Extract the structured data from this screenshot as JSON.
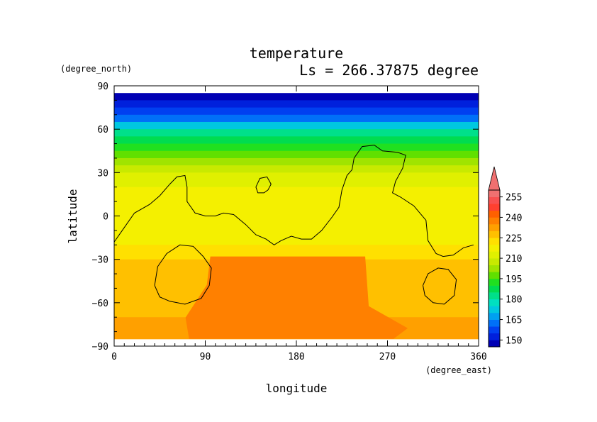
{
  "chart_data": {
    "type": "heatmap",
    "title": "temperature",
    "subtitle": "Ls = 266.37875 degree",
    "xlabel": "longitude",
    "ylabel": "latitude",
    "x_units": "(degree_east)",
    "y_units": "(degree_north)",
    "xlim": [
      0,
      360
    ],
    "ylim": [
      -90,
      90
    ],
    "x_ticks": [
      "0",
      "90",
      "180",
      "270",
      "360"
    ],
    "y_ticks": [
      "90",
      "60",
      "30",
      "0",
      "−30",
      "−60",
      "−90"
    ],
    "grid": false,
    "lat_bands": [
      {
        "lat_range": [
          80,
          85
        ],
        "value": 145
      },
      {
        "lat_range": [
          75,
          80
        ],
        "value": 150
      },
      {
        "lat_range": [
          70,
          75
        ],
        "value": 157
      },
      {
        "lat_range": [
          65,
          70
        ],
        "value": 164
      },
      {
        "lat_range": [
          60,
          65
        ],
        "value": 172
      },
      {
        "lat_range": [
          55,
          60
        ],
        "value": 180
      },
      {
        "lat_range": [
          50,
          55
        ],
        "value": 186
      },
      {
        "lat_range": [
          45,
          50
        ],
        "value": 192
      },
      {
        "lat_range": [
          40,
          45
        ],
        "value": 198
      },
      {
        "lat_range": [
          35,
          40
        ],
        "value": 203
      },
      {
        "lat_range": [
          30,
          35
        ],
        "value": 207
      },
      {
        "lat_range": [
          20,
          30
        ],
        "value": 211
      },
      {
        "lat_range": [
          0,
          20
        ],
        "value": 216
      },
      {
        "lat_range": [
          -20,
          0
        ],
        "value": 219
      },
      {
        "lat_range": [
          -30,
          -20
        ],
        "value": 224
      },
      {
        "lat_range": [
          -70,
          -30
        ],
        "value": 229
      },
      {
        "lat_range": [
          -85,
          -70
        ],
        "value": 232
      }
    ],
    "warm_region": {
      "value": 237,
      "lon_range": [
        60,
        290
      ],
      "lat_range": [
        -85,
        -28
      ]
    },
    "colorbar": {
      "levels": [
        145,
        150,
        155,
        160,
        165,
        170,
        175,
        180,
        185,
        190,
        195,
        200,
        205,
        210,
        215,
        220,
        225,
        230,
        235,
        240,
        245,
        250,
        255,
        260
      ],
      "tick_labels": [
        "150",
        "165",
        "180",
        "195",
        "210",
        "225",
        "240",
        "255"
      ],
      "colors": [
        "#0000b4",
        "#0020dc",
        "#0040f0",
        "#0070f8",
        "#00a0f0",
        "#00c8e0",
        "#00e0c0",
        "#00e08a",
        "#00dc50",
        "#20e020",
        "#60e000",
        "#a0e400",
        "#c8ea00",
        "#e0f000",
        "#f4f000",
        "#ffe000",
        "#ffc000",
        "#ffa000",
        "#ff8000",
        "#ff6000",
        "#ff4030",
        "#f85050",
        "#f07070"
      ],
      "extend": "max"
    },
    "contours": [
      {
        "name": "topography",
        "points": [
          [
            0,
            -18
          ],
          [
            10,
            -8
          ],
          [
            20,
            2
          ],
          [
            35,
            8
          ],
          [
            45,
            14
          ],
          [
            55,
            22
          ],
          [
            62,
            27
          ],
          [
            70,
            28
          ],
          [
            72,
            20
          ],
          [
            72,
            10
          ],
          [
            80,
            2
          ],
          [
            90,
            0
          ],
          [
            100,
            0
          ],
          [
            108,
            2
          ],
          [
            118,
            1
          ],
          [
            130,
            -6
          ],
          [
            140,
            -13
          ],
          [
            150,
            -16
          ],
          [
            158,
            -20
          ],
          [
            165,
            -17
          ],
          [
            175,
            -14
          ],
          [
            185,
            -16
          ],
          [
            195,
            -16
          ],
          [
            205,
            -10
          ],
          [
            215,
            -1
          ],
          [
            222,
            6
          ],
          [
            225,
            18
          ],
          [
            230,
            28
          ],
          [
            235,
            32
          ],
          [
            237,
            40
          ],
          [
            245,
            48
          ],
          [
            257,
            49
          ],
          [
            265,
            45
          ],
          [
            280,
            44
          ],
          [
            288,
            42
          ],
          [
            285,
            33
          ],
          [
            278,
            24
          ],
          [
            275,
            16
          ],
          [
            283,
            13
          ],
          [
            296,
            7
          ],
          [
            308,
            -3
          ],
          [
            310,
            -17
          ],
          [
            318,
            -26
          ],
          [
            325,
            -28
          ],
          [
            335,
            -27
          ],
          [
            345,
            -22
          ],
          [
            355,
            -20
          ]
        ]
      },
      {
        "name": "crater-left",
        "points": [
          [
            40,
            -48
          ],
          [
            43,
            -35
          ],
          [
            52,
            -26
          ],
          [
            65,
            -20
          ],
          [
            78,
            -21
          ],
          [
            88,
            -28
          ],
          [
            96,
            -36
          ],
          [
            94,
            -48
          ],
          [
            86,
            -57
          ],
          [
            70,
            -61
          ],
          [
            55,
            -59
          ],
          [
            45,
            -56
          ],
          [
            40,
            -48
          ]
        ]
      },
      {
        "name": "crater-right",
        "points": [
          [
            305,
            -48
          ],
          [
            310,
            -40
          ],
          [
            320,
            -36
          ],
          [
            330,
            -37
          ],
          [
            338,
            -44
          ],
          [
            336,
            -55
          ],
          [
            326,
            -61
          ],
          [
            315,
            -60
          ],
          [
            307,
            -55
          ],
          [
            305,
            -48
          ]
        ]
      },
      {
        "name": "small-loop",
        "points": [
          [
            140,
            20
          ],
          [
            144,
            26
          ],
          [
            151,
            27
          ],
          [
            155,
            22
          ],
          [
            152,
            18
          ],
          [
            148,
            16
          ],
          [
            142,
            16
          ],
          [
            140,
            20
          ]
        ]
      }
    ]
  }
}
